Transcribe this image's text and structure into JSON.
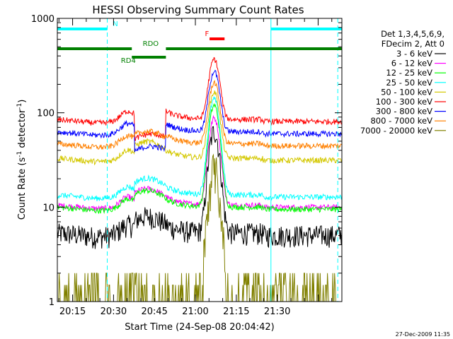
{
  "chart_data": {
    "type": "line",
    "title": "HESSI Observing Summary Count Rates",
    "xlabel": "Start Time (24-Sep-08 20:04:42)",
    "ylabel_main": "Count Rate (s",
    "ylabel_sup1": "-1",
    "ylabel_mid": " detector",
    "ylabel_sup2": "-1",
    "ylabel_end": ")",
    "yscale": "log",
    "ylim": [
      1,
      1000
    ],
    "xlim_min": [
      4.7,
      109
    ],
    "x_ticks_min": [
      10.3,
      25.3,
      40.3,
      55.3,
      70.3,
      85.3
    ],
    "x_tick_labels": [
      "20:15",
      "20:30",
      "20:45",
      "21:00",
      "21:15",
      "21:30"
    ],
    "y_ticks": [
      1,
      10,
      100,
      1000
    ],
    "y_tick_labels": [
      "1",
      "10",
      "100",
      "1000"
    ],
    "legend_header": [
      "Det 1,3,4,5,6,9,",
      "FDecim 2, Att 0"
    ],
    "legend_position": "right",
    "footer_date": "27-Dec-2009 11:35",
    "series": [
      {
        "name": "3 - 6 keV",
        "color": "#000000",
        "base": 5.2,
        "peak": 62
      },
      {
        "name": "6 - 12 keV",
        "color": "#ff00ff",
        "base": 10.5,
        "peak": 88
      },
      {
        "name": "12 - 25 keV",
        "color": "#00ff00",
        "base": 10,
        "peak": 120
      },
      {
        "name": "25 - 50 keV",
        "color": "#00ffff",
        "base": 13.5,
        "peak": 140
      },
      {
        "name": "50 - 100 keV",
        "color": "#d4c800",
        "base": 33,
        "peak": 165
      },
      {
        "name": "100 - 300 keV",
        "color": "#ff0000",
        "base": 85,
        "peak": 370
      },
      {
        "name": "300 - 800 keV",
        "color": "#0000ff",
        "base": 63,
        "peak": 275
      },
      {
        "name": "800 - 7000 keV",
        "color": "#ff8000",
        "base": 47,
        "peak": 210
      },
      {
        "name": "7000 - 20000 keV",
        "color": "#808000",
        "base": 1.5,
        "peak": 21
      }
    ],
    "annotations": [
      {
        "label": "N",
        "color": "#00ffff",
        "y": 830,
        "segments": [
          [
            4.7,
            23
          ],
          [
            83,
            109
          ]
        ]
      },
      {
        "label": "F",
        "color": "#ff0000",
        "y": 620,
        "segments": [
          [
            60.5,
            66
          ]
        ]
      },
      {
        "label": "RDO",
        "color": "#008000",
        "y": 540,
        "segments": [
          [
            4.7,
            32
          ],
          [
            44.5,
            109
          ]
        ]
      },
      {
        "label": "RD4",
        "color": "#008000",
        "y": 460,
        "segments": [
          [
            32,
            44.5
          ]
        ]
      }
    ],
    "event_lines_min": [
      {
        "x": 4.7,
        "style": "solid"
      },
      {
        "x": 23,
        "style": "dashed"
      },
      {
        "x": 83,
        "style": "solid"
      },
      {
        "x": 107.5,
        "style": "dashed"
      }
    ]
  }
}
